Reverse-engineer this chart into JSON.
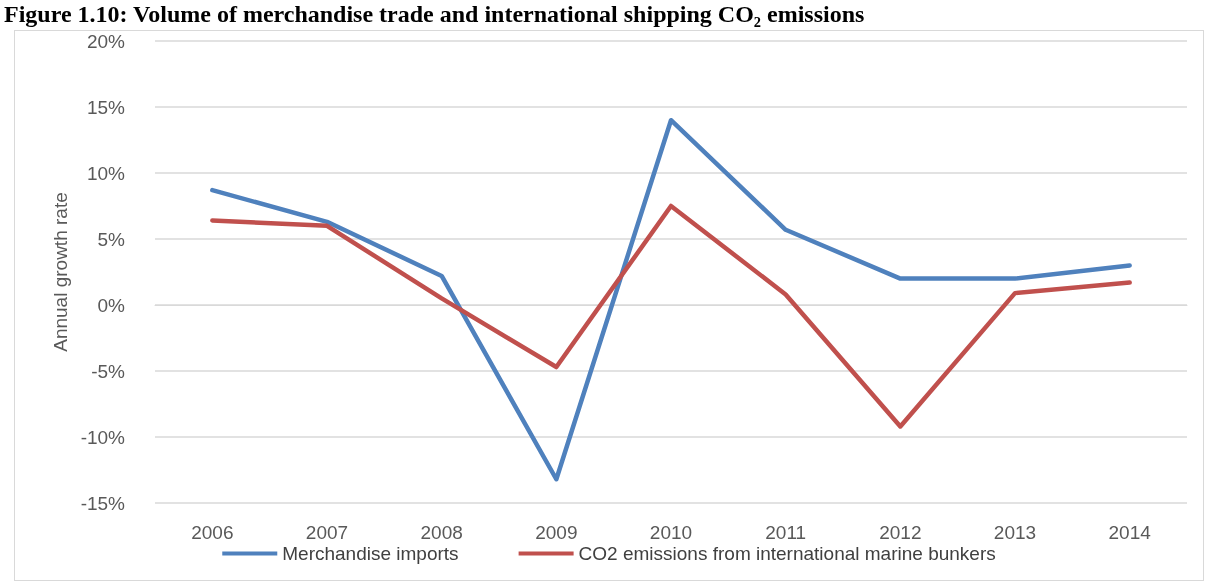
{
  "chart_data": {
    "type": "line",
    "title": "Figure 1.10: Volume of merchandise trade and international shipping CO₂ emissions",
    "ylabel": "Annual growth rate",
    "categories": [
      "2006",
      "2007",
      "2008",
      "2009",
      "2010",
      "2011",
      "2012",
      "2013",
      "2014"
    ],
    "series": [
      {
        "name": "Merchandise imports",
        "color": "#4f81bd",
        "values": [
          8.7,
          6.3,
          2.2,
          -13.2,
          14.0,
          5.7,
          2.0,
          2.0,
          3.0
        ]
      },
      {
        "name": "CO2 emissions from international marine bunkers",
        "color": "#c0504d",
        "values": [
          6.4,
          6.0,
          0.5,
          -4.7,
          7.5,
          0.8,
          -9.2,
          0.9,
          1.7
        ]
      }
    ],
    "ylim": [
      -15,
      20
    ],
    "yticks": [
      {
        "value": -15,
        "label": "-15%"
      },
      {
        "value": -10,
        "label": "-10%"
      },
      {
        "value": -5,
        "label": "-5%"
      },
      {
        "value": 0,
        "label": "0%"
      },
      {
        "value": 5,
        "label": "5%"
      },
      {
        "value": 10,
        "label": "10%"
      },
      {
        "value": 15,
        "label": "15%"
      },
      {
        "value": 20,
        "label": "20%"
      }
    ],
    "grid": "y",
    "legend": "bottom",
    "marker": "none",
    "line_style": "solid"
  }
}
